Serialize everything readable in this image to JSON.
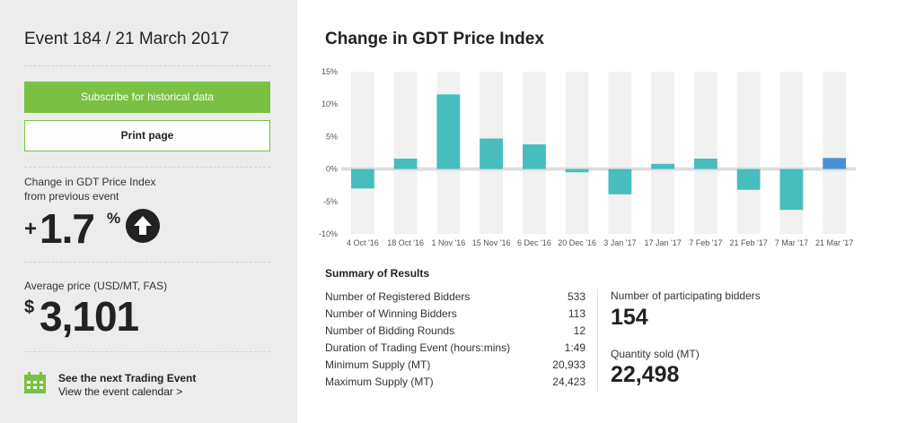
{
  "sidebar": {
    "event_title": "Event 184 / 21 March 2017",
    "subscribe_label": "Subscribe for historical data",
    "print_label": "Print page",
    "change_label_line1": "Change in GDT Price Index",
    "change_label_line2": "from previous event",
    "change_sign": "+",
    "change_value": "1.7",
    "change_unit": "%",
    "direction_icon": "arrow-up-circle-icon",
    "avg_label": "Average price (USD/MT, FAS)",
    "avg_currency": "$",
    "avg_value": "3,101",
    "next_event_title": "See the next Trading Event",
    "next_event_link": "View the event calendar >",
    "calendar_icon": "calendar-icon"
  },
  "chart_title": "Change in GDT Price Index",
  "chart_data": {
    "type": "bar",
    "title": "Change in GDT Price Index",
    "xlabel": "",
    "ylabel": "",
    "ylim": [
      -10,
      15
    ],
    "yticks": [
      "15%",
      "10%",
      "5%",
      "0%",
      "-5%",
      "-10%"
    ],
    "ytick_values": [
      15,
      10,
      5,
      0,
      -5,
      -10
    ],
    "categories": [
      "4 Oct '16",
      "18 Oct '16",
      "1 Nov '16",
      "15 Nov '16",
      "6 Dec '16",
      "20 Dec '16",
      "3 Jan '17",
      "17 Jan '17",
      "7 Feb '17",
      "21 Feb '17",
      "7 Mar '17",
      "21 Mar '17"
    ],
    "values": [
      -3.0,
      1.6,
      11.5,
      4.7,
      3.8,
      -0.5,
      -3.9,
      0.8,
      1.6,
      -3.2,
      -6.3,
      1.7
    ],
    "grid": true,
    "colors": {
      "default": "#47bdbd",
      "highlight": "#4a90d9",
      "column_bg": "#f1f1f1",
      "zero_band": "#dedede"
    },
    "highlight_index": 11
  },
  "summary": {
    "title": "Summary of Results",
    "rows": [
      {
        "label": "Number of Registered Bidders",
        "value": "533"
      },
      {
        "label": "Number of Winning Bidders",
        "value": "113"
      },
      {
        "label": "Number of Bidding Rounds",
        "value": "12"
      },
      {
        "label": "Duration of Trading Event (hours:mins)",
        "value": "1:49"
      },
      {
        "label": "Minimum Supply (MT)",
        "value": "20,933"
      },
      {
        "label": "Maximum Supply (MT)",
        "value": "24,423"
      }
    ],
    "bidders_label": "Number of participating bidders",
    "bidders_value": "154",
    "qty_label": "Quantity sold (MT)",
    "qty_value": "22,498"
  },
  "colors": {
    "accent_green": "#7ac143",
    "sidebar_bg": "#ececec"
  }
}
